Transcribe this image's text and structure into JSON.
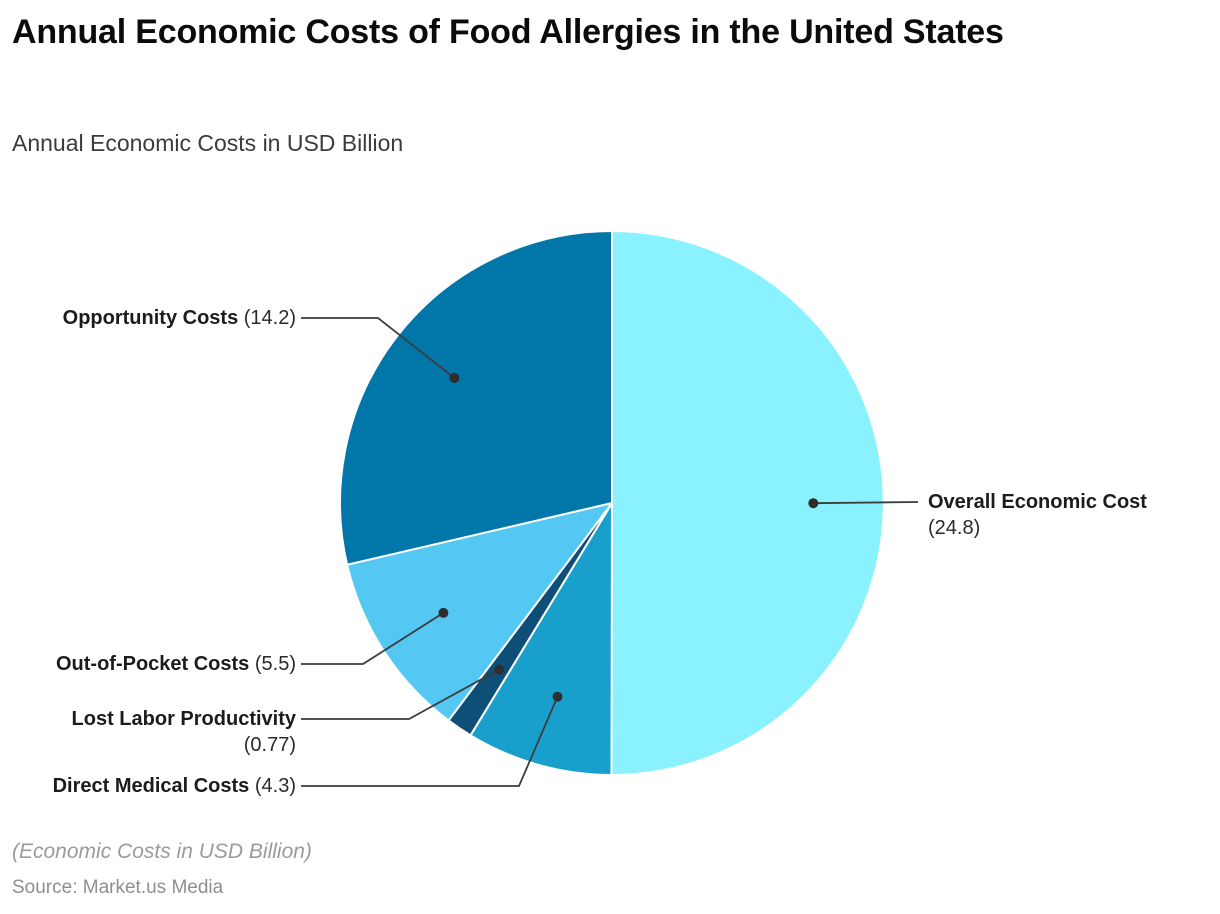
{
  "header": {
    "title": "Annual Economic Costs of Food Allergies in the United States",
    "subtitle": "Annual Economic Costs in USD Billion"
  },
  "footer": {
    "note": "(Economic Costs in USD Billion)",
    "source": "Source: Market.us Media"
  },
  "chart_data": {
    "type": "pie",
    "title": "Annual Economic Costs of Food Allergies in the United States",
    "subtitle": "Annual Economic Costs in USD Billion",
    "unit": "USD Billion",
    "start_angle_deg": 0,
    "direction": "clockwise",
    "legend": "none",
    "label_style": "callout-with-leader-lines",
    "slices": [
      {
        "label": "Overall Economic Cost",
        "value": 24.8,
        "color": "#89F2FE"
      },
      {
        "label": "Direct Medical Costs",
        "value": 4.3,
        "color": "#189FCC"
      },
      {
        "label": "Lost Labor Productivity",
        "value": 0.77,
        "color": "#0E4F78"
      },
      {
        "label": "Out-of-Pocket Costs",
        "value": 5.5,
        "color": "#54C8F3"
      },
      {
        "label": "Opportunity Costs",
        "value": 14.2,
        "color": "#0077A8"
      }
    ],
    "total": 49.57,
    "slice_border_color": "#FFFFFF",
    "leader_line_color": "#3C3C3C",
    "marker_color": "#2E2E2E"
  }
}
